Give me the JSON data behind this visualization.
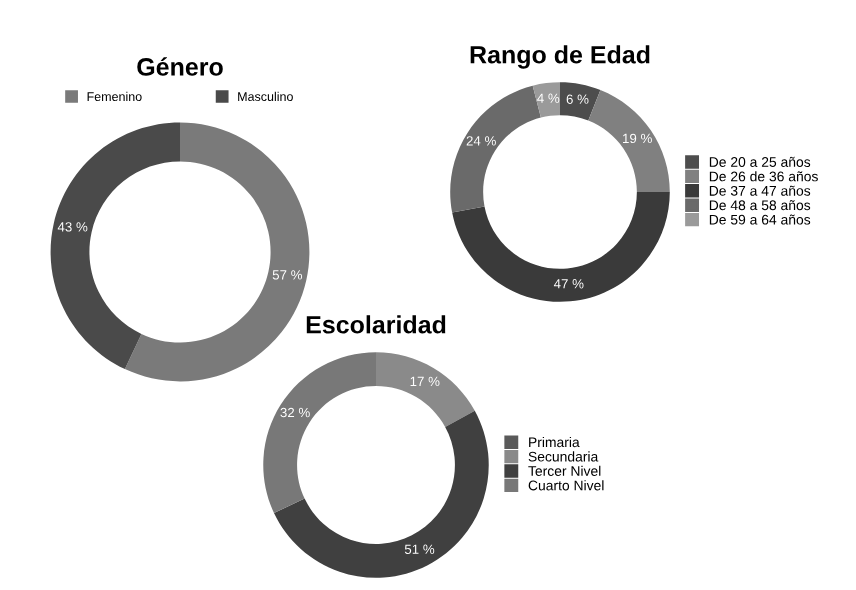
{
  "chart_data": [
    {
      "type": "donut",
      "title": "Género",
      "categories": [
        "Femenino",
        "Masculino"
      ],
      "values": [
        57,
        43
      ],
      "colors": [
        "#7a7a7a",
        "#4a4a4a"
      ],
      "value_labels": [
        "57 %",
        "43 %"
      ],
      "legend": "top"
    },
    {
      "type": "donut",
      "title": "Rango de Edad",
      "categories": [
        "De 20 a 25 años",
        "De 26 de 36 años",
        "De 37 a 47 años",
        "De 48 a 58 años",
        "De 59 a 64 años"
      ],
      "values": [
        6,
        19,
        47,
        24,
        4
      ],
      "colors": [
        "#4d4d4d",
        "#808080",
        "#3a3a3a",
        "#6a6a6a",
        "#9a9a9a"
      ],
      "value_labels": [
        "6 %",
        "19 %",
        "47 %",
        "24 %",
        "4 %"
      ],
      "legend": "right"
    },
    {
      "type": "donut",
      "title": "Escolaridad",
      "categories": [
        "Primaria",
        "Secundaria",
        "Tercer Nivel",
        "Cuarto Nivel"
      ],
      "values": [
        0,
        17,
        51,
        32
      ],
      "colors": [
        "#5a5a5a",
        "#8a8a8a",
        "#404040",
        "#787878"
      ],
      "value_labels": [
        null,
        "17 %",
        "51 %",
        "32 %"
      ],
      "legend": "right"
    }
  ]
}
